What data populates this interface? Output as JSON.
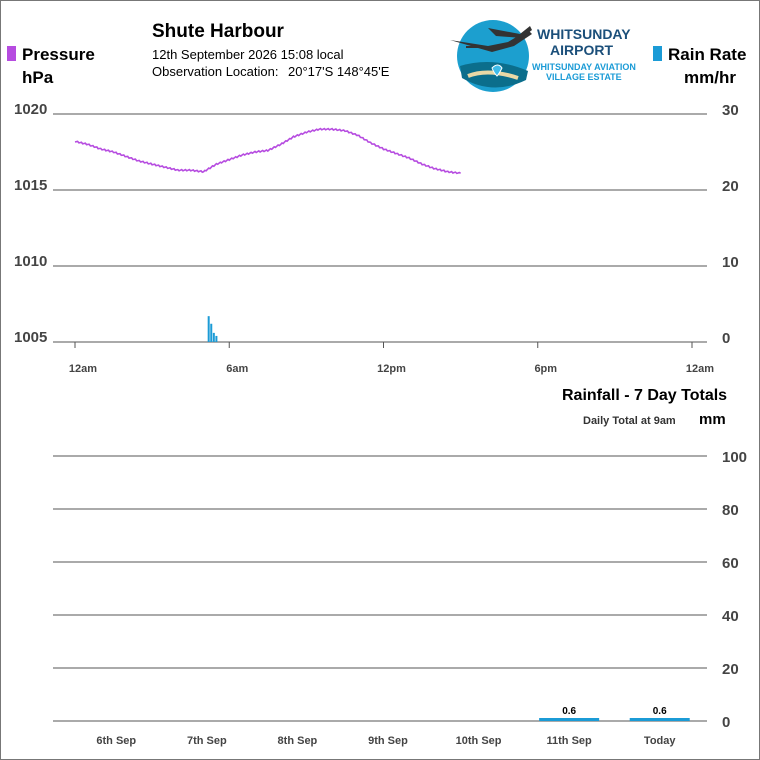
{
  "header": {
    "station": "Shute Harbour",
    "datetime": "12th September 2026  15:08 local",
    "location_label": "Observation Location:",
    "location_value": "20°17'S 148°45'E"
  },
  "logo": {
    "line1": "WHITSUNDAY",
    "line2": "AIRPORT",
    "line3": "WHITSUNDAY AVIATION",
    "line4": "VILLAGE ESTATE",
    "icon": "airport-logo-icon"
  },
  "colors": {
    "pressure": "#b64ce0",
    "rain": "#1b9bd6",
    "grid": "#555555"
  },
  "legend": {
    "pressure_name": "Pressure",
    "pressure_unit": "hPa",
    "rain_name": "Rain Rate",
    "rain_unit": "mm/hr"
  },
  "rainfall_panel": {
    "title": "Rainfall - 7 Day Totals",
    "subtitle": "Daily Total at 9am",
    "unit": "mm"
  },
  "chart_data": [
    {
      "type": "line",
      "title": "",
      "xlabel": "",
      "ylabel": "Pressure hPa",
      "x_ticks": [
        "12am",
        "6am",
        "12pm",
        "6pm",
        "12am"
      ],
      "xlim_hours": [
        0,
        24
      ],
      "ylim": [
        1005,
        1020
      ],
      "y_ticks": [
        1020,
        1015,
        1010,
        1005
      ],
      "y2label": "Rain Rate mm/hr",
      "y2lim": [
        0,
        30
      ],
      "y2_ticks": [
        30,
        20,
        10,
        0
      ],
      "grid": true,
      "series": [
        {
          "name": "Pressure",
          "axis": "left",
          "x": [
            0.0,
            0.5,
            1.0,
            1.5,
            2.0,
            2.5,
            3.0,
            3.5,
            4.0,
            4.5,
            5.0,
            5.5,
            6.0,
            6.5,
            7.0,
            7.5,
            8.0,
            8.5,
            9.0,
            9.5,
            10.0,
            10.5,
            11.0,
            11.5,
            12.0,
            12.5,
            13.0,
            13.5,
            14.0,
            14.5,
            15.0
          ],
          "y": [
            1018.2,
            1018.0,
            1017.7,
            1017.5,
            1017.2,
            1016.9,
            1016.7,
            1016.5,
            1016.3,
            1016.3,
            1016.2,
            1016.7,
            1017.0,
            1017.3,
            1017.5,
            1017.6,
            1018.0,
            1018.5,
            1018.8,
            1019.0,
            1019.0,
            1018.9,
            1018.6,
            1018.1,
            1017.7,
            1017.4,
            1017.1,
            1016.7,
            1016.4,
            1016.2,
            1016.1
          ]
        },
        {
          "name": "Rain Rate",
          "axis": "right",
          "type": "bar",
          "x": [
            5.2,
            5.3,
            5.4,
            5.5
          ],
          "y": [
            3.4,
            2.4,
            1.2,
            0.8
          ]
        }
      ]
    },
    {
      "type": "bar",
      "title": "Rainfall - 7 Day Totals",
      "subtitle": "Daily Total at 9am",
      "xlabel": "",
      "ylabel": "mm",
      "categories": [
        "6th Sep",
        "7th Sep",
        "8th Sep",
        "9th Sep",
        "10th Sep",
        "11th Sep",
        "Today"
      ],
      "values": [
        0,
        0,
        0,
        0,
        0,
        0.6,
        0.6
      ],
      "labels": [
        "",
        "",
        "",
        "",
        "",
        "0.6",
        "0.6"
      ],
      "ylim": [
        0,
        100
      ],
      "y_ticks": [
        100,
        80,
        60,
        40,
        20,
        0
      ],
      "grid": true
    }
  ]
}
